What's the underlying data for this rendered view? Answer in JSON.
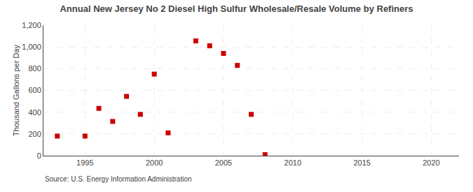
{
  "chart_data": {
    "type": "scatter",
    "title": "Annual New Jersey No 2 Diesel High Sulfur Wholesale/Resale Volume by Refiners",
    "ylabel": "Thousand Gallons per Day",
    "annotations": [
      "Source: U.S. Energy Information Administration"
    ],
    "x": [
      1993,
      1995,
      1996,
      1997,
      1998,
      1999,
      2000,
      2001,
      2003,
      2004,
      2005,
      2006,
      2007,
      2008
    ],
    "values": [
      180,
      180,
      435,
      315,
      545,
      380,
      750,
      210,
      1055,
      1010,
      940,
      830,
      380,
      10
    ],
    "color": "#cc0000",
    "marker": "square",
    "xlim": [
      1992,
      2022
    ],
    "xticks": [
      1995,
      2000,
      2005,
      2010,
      2015,
      2020
    ],
    "ylim": [
      0,
      1200
    ],
    "yticks": [
      0,
      200,
      400,
      600,
      800,
      {
        "value": 1000,
        "label": "1,000"
      },
      {
        "value": 1200,
        "label": "1,200"
      }
    ],
    "grid": true
  }
}
